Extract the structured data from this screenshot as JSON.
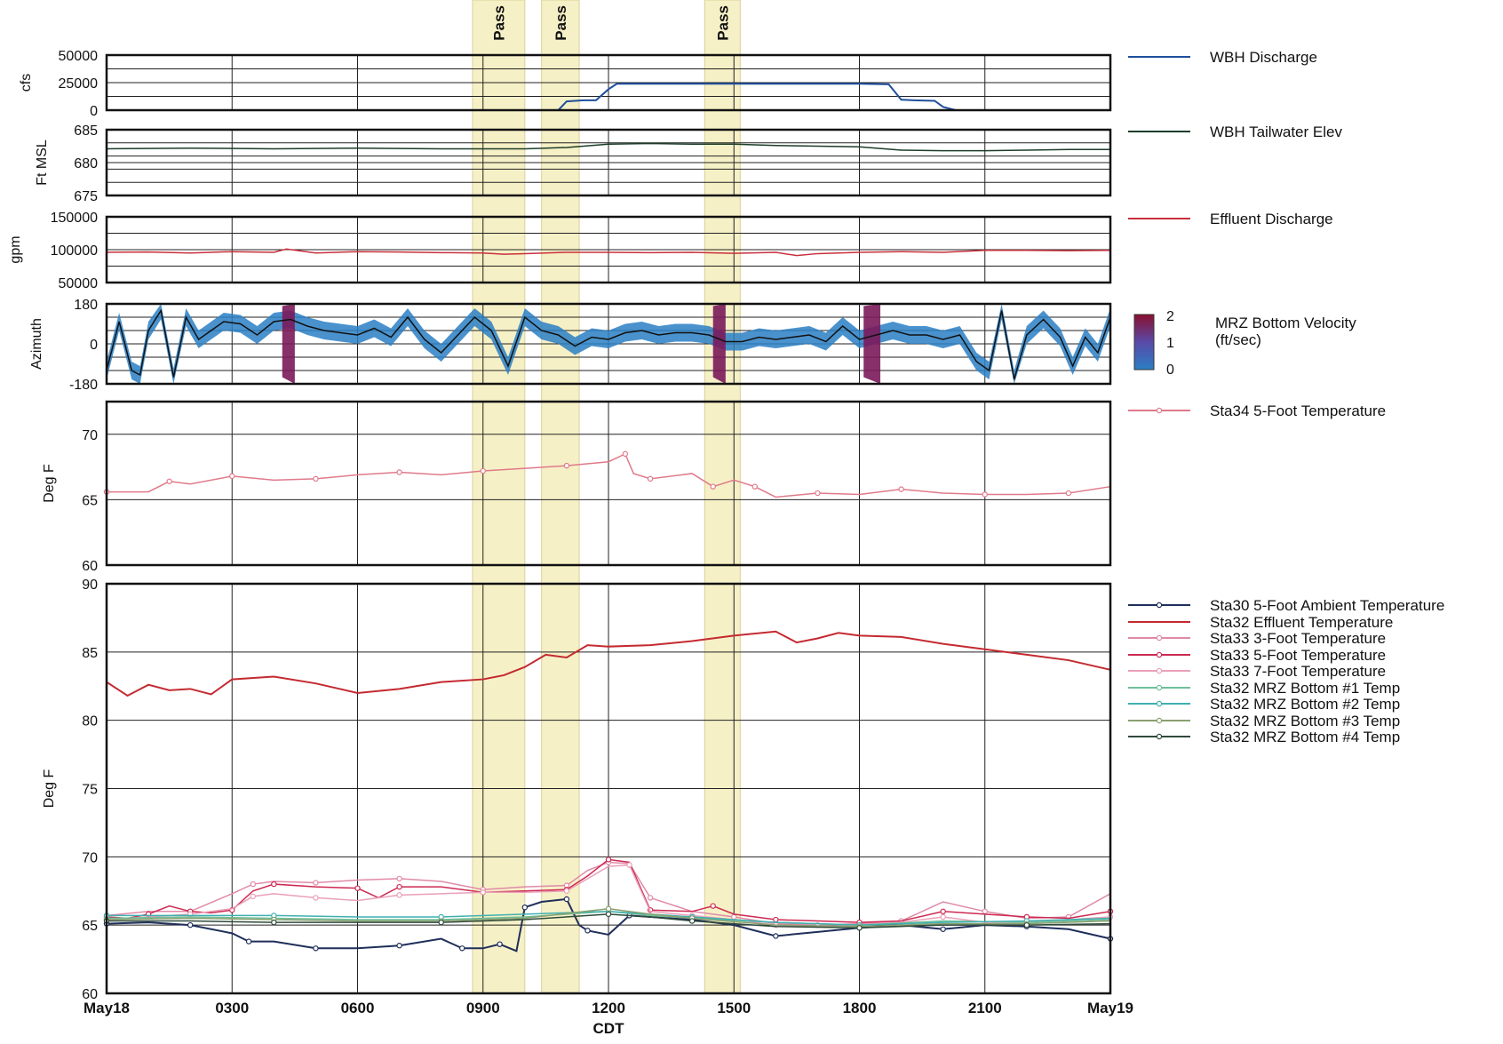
{
  "chart_data": {
    "type": "line",
    "x_axis": {
      "label": "CDT",
      "start_hours": 0,
      "end_hours": 24,
      "tick_hours": [
        0,
        3,
        6,
        9,
        12,
        15,
        18,
        21,
        24
      ],
      "tick_labels": [
        "May18",
        "0300",
        "0600",
        "0900",
        "1200",
        "1500",
        "1800",
        "2100",
        "May19"
      ]
    },
    "pass_bands": [
      {
        "label": "Pass",
        "start_hours": 8.75,
        "end_hours": 10.0
      },
      {
        "label": "Pass",
        "start_hours": 10.4,
        "end_hours": 11.3
      },
      {
        "label": "Pass",
        "start_hours": 14.3,
        "end_hours": 15.15
      }
    ],
    "panels": [
      {
        "id": "discharge",
        "ylabel": "cfs",
        "ylim": [
          0,
          50000
        ],
        "yticks": [
          0,
          25000,
          50000
        ],
        "ytick_labels": [
          "0",
          "25000",
          "50000"
        ],
        "minor_lines": 4,
        "series": [
          {
            "name": "WBH Discharge",
            "color": "#1f4f9c",
            "x": [
              10.8,
              11.0,
              11.4,
              11.7,
              12.0,
              12.2,
              13,
              14,
              15,
              16,
              17,
              18,
              18.7,
              19.0,
              19.3,
              19.8,
              20.0,
              20.3
            ],
            "y": [
              0,
              8000,
              9000,
              9000,
              19000,
              24000,
              24000,
              24000,
              24000,
              24000,
              24000,
              24000,
              23500,
              9500,
              9000,
              8500,
              3000,
              0
            ]
          }
        ]
      },
      {
        "id": "tailwater",
        "ylabel": "Ft MSL",
        "ylim": [
          675,
          685
        ],
        "yticks": [
          675,
          680,
          685
        ],
        "ytick_labels": [
          "675",
          "680",
          "685"
        ],
        "minor_lines": 5,
        "series": [
          {
            "name": "WBH Tailwater Elev",
            "color": "#1c3d2a",
            "x": [
              0,
              2,
              4,
              6,
              8,
              10,
              11,
              12,
              13,
              14,
              15,
              16,
              17,
              18,
              19,
              20,
              21,
              22,
              23,
              24
            ],
            "y": [
              682.1,
              682.2,
              682.1,
              682.2,
              682.1,
              682.1,
              682.3,
              682.8,
              682.9,
              682.8,
              682.8,
              682.6,
              682.5,
              682.4,
              681.9,
              681.8,
              681.8,
              681.9,
              682.0,
              682.0
            ]
          }
        ]
      },
      {
        "id": "effluent",
        "ylabel": "gpm",
        "ylim": [
          50000,
          150000
        ],
        "yticks": [
          50000,
          100000,
          150000
        ],
        "ytick_labels": [
          "50000",
          "100000",
          "150000"
        ],
        "minor_lines": 4,
        "series": [
          {
            "name": "Effluent Discharge",
            "color": "#c8303c",
            "x": [
              0,
              1,
              2,
              3,
              4,
              4.3,
              5,
              6,
              7,
              8,
              9,
              9.5,
              10,
              11,
              12,
              13,
              14,
              15,
              16,
              16.5,
              17,
              18,
              19,
              20,
              21,
              22,
              23,
              24
            ],
            "y": [
              96000,
              96500,
              95000,
              97000,
              96000,
              101000,
              95000,
              97000,
              96500,
              95500,
              95000,
              93000,
              94000,
              96000,
              96000,
              95500,
              96000,
              94500,
              96000,
              91000,
              94000,
              96000,
              97000,
              96000,
              99000,
              99000,
              98500,
              99000
            ]
          }
        ]
      },
      {
        "id": "velocity",
        "ylabel": "Azimuth",
        "ylim": [
          -180,
          180
        ],
        "yticks": [
          -180,
          0,
          180
        ],
        "ytick_labels": [
          "-180",
          "0",
          "180"
        ],
        "minor_lines": 6,
        "colorbar": {
          "title": "MRZ Bottom Velocity",
          "units": "(ft/sec)",
          "labels": [
            "0",
            "1",
            "2"
          ]
        },
        "series": [
          {
            "name": "MRZ Bottom Velocity",
            "color": "#111111",
            "x": [
              0,
              0.3,
              0.6,
              0.8,
              1.0,
              1.3,
              1.6,
              1.9,
              2.2,
              2.5,
              2.8,
              3.2,
              3.6,
              4.0,
              4.4,
              4.8,
              5.2,
              5.6,
              6.0,
              6.4,
              6.8,
              7.2,
              7.6,
              8.0,
              8.4,
              8.8,
              9.2,
              9.6,
              10.0,
              10.4,
              10.8,
              11.2,
              11.6,
              12.0,
              12.4,
              12.8,
              13.2,
              13.6,
              14.0,
              14.4,
              14.8,
              15.2,
              15.6,
              16.0,
              16.4,
              16.8,
              17.2,
              17.6,
              18.0,
              18.4,
              18.8,
              19.2,
              19.6,
              20.0,
              20.4,
              20.8,
              21.1,
              21.4,
              21.7,
              22.0,
              22.4,
              22.8,
              23.1,
              23.4,
              23.7,
              24.0
            ],
            "y": [
              -120,
              100,
              -120,
              -140,
              60,
              150,
              -150,
              120,
              20,
              60,
              100,
              90,
              40,
              100,
              110,
              80,
              60,
              50,
              40,
              70,
              30,
              120,
              20,
              -40,
              40,
              120,
              60,
              -100,
              120,
              60,
              40,
              -10,
              30,
              20,
              50,
              60,
              40,
              50,
              50,
              40,
              10,
              10,
              30,
              20,
              30,
              40,
              10,
              80,
              20,
              40,
              60,
              40,
              40,
              20,
              40,
              -80,
              -120,
              150,
              -160,
              40,
              110,
              30,
              -100,
              30,
              -40,
              120
            ]
          }
        ]
      },
      {
        "id": "sta34",
        "ylabel": "Deg F",
        "ylim": [
          60,
          72.5
        ],
        "yticks": [
          60,
          65,
          70
        ],
        "ytick_labels": [
          "60",
          "65",
          "70"
        ],
        "series": [
          {
            "name": "Sta34 5-Foot Temperature",
            "color": "#e07a8a",
            "x": [
              0,
              1,
              1.5,
              2,
              3,
              4,
              5,
              6,
              7,
              8,
              9,
              10,
              11,
              12,
              12.4,
              12.6,
              13,
              14,
              14.5,
              15,
              15.5,
              16,
              17,
              18,
              19,
              20,
              21,
              22,
              23,
              24
            ],
            "y": [
              65.6,
              65.6,
              66.4,
              66.2,
              66.8,
              66.5,
              66.6,
              66.9,
              67.1,
              66.9,
              67.2,
              67.4,
              67.6,
              67.9,
              68.5,
              67.0,
              66.6,
              67.0,
              66.0,
              66.5,
              66.0,
              65.2,
              65.5,
              65.4,
              65.8,
              65.5,
              65.4,
              65.4,
              65.5,
              66.0
            ]
          }
        ]
      },
      {
        "id": "temps",
        "ylabel": "Deg F",
        "ylim": [
          60,
          90
        ],
        "yticks": [
          60,
          65,
          70,
          75,
          80,
          85,
          90
        ],
        "ytick_labels": [
          "60",
          "65",
          "70",
          "75",
          "80",
          "85",
          "90"
        ],
        "series": [
          {
            "name": "Sta30 5-Foot Ambient Temperature",
            "color": "#1f2f5a",
            "x": [
              0,
              1,
              2,
              3,
              3.4,
              4,
              5,
              6,
              7,
              8,
              8.5,
              9,
              9.4,
              9.8,
              10.0,
              10.4,
              11,
              11.3,
              11.5,
              12,
              12.5,
              13,
              14,
              15,
              16,
              17,
              18,
              19,
              20,
              21,
              22,
              23,
              24
            ],
            "y": [
              65.1,
              65.2,
              65.0,
              64.4,
              63.8,
              63.8,
              63.3,
              63.3,
              63.5,
              64.0,
              63.3,
              63.3,
              63.6,
              63.1,
              66.3,
              66.7,
              66.9,
              65.0,
              64.6,
              64.3,
              65.7,
              65.6,
              65.4,
              65.0,
              64.2,
              64.5,
              64.8,
              65.0,
              64.7,
              65.0,
              64.9,
              64.7,
              64.0
            ]
          },
          {
            "name": "Sta32 Effluent Temperature",
            "color": "#c42a30",
            "x": [
              0,
              0.5,
              1,
              1.5,
              2,
              2.5,
              3,
              4,
              5,
              6,
              7,
              8,
              9,
              9.5,
              10,
              10.5,
              11,
              11.5,
              12,
              13,
              14,
              15,
              16,
              16.5,
              17,
              17.5,
              18,
              19,
              20,
              21,
              22,
              23,
              24
            ],
            "y": [
              82.8,
              81.8,
              82.6,
              82.2,
              82.3,
              81.9,
              83.0,
              83.2,
              82.7,
              82.0,
              82.3,
              82.8,
              83.0,
              83.3,
              83.9,
              84.8,
              84.6,
              85.5,
              85.4,
              85.5,
              85.8,
              86.2,
              86.5,
              85.7,
              86.0,
              86.4,
              86.2,
              86.1,
              85.6,
              85.2,
              84.8,
              84.4,
              83.7
            ]
          },
          {
            "name": "Sta33 3-Foot Temperature",
            "color": "#e08aa8",
            "x": [
              0,
              1,
              2,
              3,
              3.5,
              4,
              5,
              6,
              7,
              8,
              9,
              10,
              11,
              11.5,
              12,
              12.5,
              13,
              14,
              15,
              16,
              17,
              18,
              19,
              20,
              21,
              22,
              23,
              24
            ],
            "y": [
              65.7,
              66.0,
              66.0,
              67.3,
              68.0,
              68.2,
              68.1,
              68.3,
              68.4,
              68.2,
              67.6,
              67.8,
              67.9,
              69.0,
              69.6,
              69.5,
              67.0,
              66.0,
              65.6,
              65.1,
              65.0,
              65.1,
              65.3,
              66.7,
              66.0,
              65.5,
              65.6,
              67.3
            ]
          },
          {
            "name": "Sta33 5-Foot Temperature",
            "color": "#cc2a52",
            "x": [
              0,
              0.5,
              1,
              1.5,
              2,
              2.5,
              3,
              3.5,
              4,
              5,
              6,
              6.5,
              7,
              8,
              9,
              10,
              11,
              11.5,
              12,
              12.5,
              13,
              14,
              14.5,
              15,
              16,
              17,
              18,
              19,
              20,
              21,
              22,
              23,
              24
            ],
            "y": [
              65.6,
              65.5,
              65.8,
              66.4,
              66.0,
              65.9,
              66.1,
              67.5,
              68.0,
              67.8,
              67.7,
              67.0,
              67.8,
              67.8,
              67.4,
              67.5,
              67.6,
              68.6,
              69.8,
              69.6,
              66.1,
              66.0,
              66.4,
              65.8,
              65.4,
              65.3,
              65.2,
              65.3,
              66.0,
              65.8,
              65.6,
              65.5,
              66.0
            ]
          },
          {
            "name": "Sta33 7-Foot Temperature",
            "color": "#eaa0b8",
            "x": [
              0,
              1,
              2,
              3,
              3.5,
              4,
              5,
              6,
              7,
              8,
              9,
              10,
              11,
              12,
              12.5,
              13,
              14,
              15,
              16,
              17,
              18,
              19,
              20,
              21,
              22,
              23,
              24
            ],
            "y": [
              65.4,
              65.6,
              65.8,
              66.2,
              67.1,
              67.3,
              67.0,
              66.8,
              67.2,
              67.3,
              67.4,
              67.4,
              67.5,
              69.3,
              69.4,
              66.0,
              65.7,
              65.4,
              65.0,
              64.9,
              65.0,
              65.2,
              65.6,
              65.2,
              65.2,
              65.4,
              65.6
            ]
          },
          {
            "name": "Sta32 MRZ Bottom #1 Temp",
            "color": "#6fbf9a",
            "x": [
              0,
              2,
              4,
              6,
              8,
              10,
              12,
              13,
              14,
              16,
              18,
              20,
              22,
              24
            ],
            "y": [
              65.5,
              65.6,
              65.5,
              65.4,
              65.4,
              65.6,
              66.0,
              65.7,
              65.5,
              65.2,
              65.0,
              65.3,
              65.2,
              65.4
            ]
          },
          {
            "name": "Sta32 MRZ Bottom #2 Temp",
            "color": "#3fb0b0",
            "x": [
              0,
              2,
              4,
              6,
              8,
              10,
              12,
              13,
              14,
              16,
              18,
              20,
              22,
              24
            ],
            "y": [
              65.7,
              65.7,
              65.7,
              65.6,
              65.6,
              65.8,
              66.0,
              65.8,
              65.6,
              65.2,
              65.0,
              65.2,
              65.3,
              65.5
            ]
          },
          {
            "name": "Sta32 MRZ Bottom #3 Temp",
            "color": "#8aa070",
            "x": [
              0,
              2,
              4,
              6,
              8,
              10,
              12,
              13,
              14,
              16,
              18,
              20,
              22,
              24
            ],
            "y": [
              65.4,
              65.5,
              65.4,
              65.3,
              65.3,
              65.5,
              66.2,
              65.8,
              65.5,
              65.0,
              64.9,
              65.1,
              65.1,
              65.3
            ]
          },
          {
            "name": "Sta32 MRZ Bottom #4 Temp",
            "color": "#2f4a3a",
            "x": [
              0,
              2,
              4,
              6,
              8,
              10,
              12,
              13,
              14,
              16,
              18,
              20,
              22,
              24
            ],
            "y": [
              65.3,
              65.3,
              65.2,
              65.2,
              65.2,
              65.4,
              65.8,
              65.6,
              65.3,
              64.9,
              64.8,
              65.0,
              65.0,
              65.1
            ]
          }
        ]
      }
    ]
  }
}
